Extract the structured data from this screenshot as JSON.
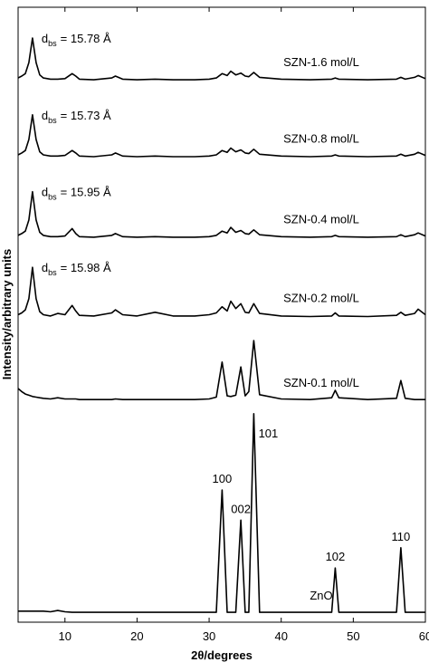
{
  "chart_data": {
    "type": "line",
    "x_label": "2θ/degrees",
    "y_label": "Intensity/arbitrary units",
    "xlim": [
      3.5,
      60
    ],
    "xticks": [
      10,
      20,
      30,
      40,
      50,
      60
    ],
    "ylim": [
      0,
      100
    ],
    "x": [
      3.5,
      4,
      4.5,
      5,
      5.5,
      6,
      6.5,
      7,
      8,
      9,
      10,
      11,
      11.5,
      12,
      14,
      16.5,
      17,
      18,
      20,
      22.5,
      25,
      28,
      30,
      31,
      31.8,
      32.5,
      33,
      33.7,
      34.4,
      35,
      35.5,
      36.2,
      37,
      40,
      44,
      47,
      47.5,
      48,
      52,
      56,
      56.6,
      57.2,
      58.5,
      59,
      60
    ],
    "series": [
      {
        "name": "SZN-1.6 mol/L",
        "color": "#000000",
        "values": [
          88.5,
          88.8,
          89.2,
          91,
          95,
          91,
          89,
          88.5,
          88.3,
          88.3,
          88.4,
          89.2,
          88.8,
          88.3,
          88.2,
          88.5,
          88.8,
          88.3,
          88.2,
          88.3,
          88.2,
          88.2,
          88.3,
          88.5,
          89.2,
          88.9,
          89.6,
          89.0,
          89.3,
          88.8,
          88.7,
          89.4,
          88.6,
          88.3,
          88.2,
          88.3,
          88.5,
          88.3,
          88.2,
          88.3,
          88.6,
          88.3,
          88.6,
          88.9,
          88.4
        ]
      },
      {
        "name": "SZN-0.8 mol/L",
        "color": "#000000",
        "values": [
          76.0,
          76.3,
          76.7,
          78.5,
          82.5,
          78.5,
          76.5,
          76.0,
          75.8,
          75.8,
          75.9,
          76.7,
          76.3,
          75.8,
          75.7,
          76.0,
          76.3,
          75.8,
          75.7,
          75.8,
          75.7,
          75.7,
          75.8,
          76.0,
          76.7,
          76.4,
          77.1,
          76.5,
          76.8,
          76.3,
          76.2,
          76.9,
          76.1,
          75.8,
          75.7,
          75.8,
          76.0,
          75.8,
          75.7,
          75.8,
          76.1,
          75.8,
          76.1,
          76.4,
          75.9
        ]
      },
      {
        "name": "SZN-0.4 mol/L",
        "color": "#000000",
        "values": [
          62.9,
          63.2,
          63.6,
          65.4,
          70.0,
          65.4,
          63.4,
          62.9,
          62.7,
          62.7,
          62.8,
          64.0,
          63.2,
          62.7,
          62.6,
          62.9,
          63.2,
          62.7,
          62.6,
          62.7,
          62.6,
          62.6,
          62.7,
          62.9,
          63.6,
          63.3,
          64.2,
          63.4,
          63.7,
          63.2,
          63.1,
          63.8,
          63.0,
          62.7,
          62.6,
          62.7,
          62.9,
          62.7,
          62.6,
          62.7,
          63.0,
          62.7,
          63.0,
          63.3,
          62.8
        ]
      },
      {
        "name": "SZN-0.2 mol/L",
        "color": "#000000",
        "values": [
          50.0,
          50.3,
          50.8,
          52.6,
          57.7,
          52.6,
          50.5,
          50.0,
          49.8,
          50.2,
          50.0,
          51.5,
          50.6,
          49.9,
          49.8,
          50.3,
          50.8,
          50.0,
          49.8,
          50.4,
          49.8,
          49.8,
          50.0,
          50.3,
          51.3,
          50.6,
          52.2,
          51.0,
          51.8,
          50.4,
          50.3,
          51.8,
          50.2,
          49.8,
          49.7,
          49.8,
          50.3,
          49.8,
          49.7,
          49.9,
          50.4,
          49.9,
          50.2,
          50.9,
          50.0
        ]
      },
      {
        "name": "SZN-0.1 mol/L",
        "color": "#000000",
        "values": [
          38.0,
          37.5,
          37.1,
          36.9,
          36.7,
          36.6,
          36.5,
          36.4,
          36.3,
          36.5,
          36.3,
          36.3,
          36.3,
          36.2,
          36.2,
          36.2,
          36.3,
          36.2,
          36.2,
          36.2,
          36.2,
          36.2,
          36.3,
          36.6,
          42.3,
          36.8,
          36.7,
          36.9,
          41.5,
          36.8,
          37.5,
          45.8,
          37.0,
          36.3,
          36.2,
          36.5,
          37.7,
          36.5,
          36.2,
          36.4,
          39.3,
          36.4,
          36.2,
          36.2,
          36.2
        ]
      },
      {
        "name": "ZnO",
        "color": "#000000",
        "values": [
          1.8,
          1.8,
          1.8,
          1.8,
          1.8,
          1.8,
          1.8,
          1.8,
          1.7,
          1.9,
          1.7,
          1.6,
          1.6,
          1.6,
          1.6,
          1.6,
          1.6,
          1.6,
          1.6,
          1.6,
          1.6,
          1.6,
          1.6,
          1.6,
          21.5,
          1.6,
          1.6,
          1.6,
          16.6,
          1.6,
          1.6,
          33.9,
          1.6,
          1.6,
          1.6,
          1.6,
          8.8,
          1.6,
          1.6,
          1.6,
          12.1,
          1.6,
          1.6,
          1.6,
          1.6
        ]
      }
    ],
    "d_annotations": [
      {
        "text": "d",
        "subscript": "bs",
        "rest": "= 15.78 Å"
      },
      {
        "text": "d",
        "subscript": "bs",
        "rest": "= 15.73 Å"
      },
      {
        "text": "d",
        "subscript": "bs",
        "rest": "= 15.95 Å"
      },
      {
        "text": "d",
        "subscript": "bs",
        "rest": "= 15.98 Å"
      }
    ],
    "peak_labels": [
      {
        "label": "100",
        "x": 31.8
      },
      {
        "label": "002",
        "x": 34.4
      },
      {
        "label": "101",
        "x": 36.2
      },
      {
        "label": "102",
        "x": 47.5
      },
      {
        "label": "110",
        "x": 56.6
      }
    ]
  }
}
